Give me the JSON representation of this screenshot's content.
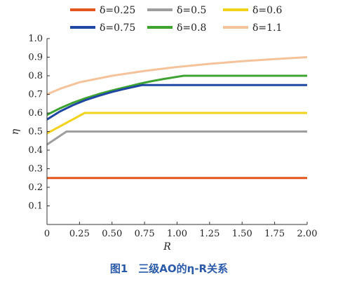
{
  "chart_data": {
    "type": "line",
    "caption": "图1　三级AO的η-R关系",
    "xlabel": "R",
    "ylabel": "η",
    "xlim": [
      0,
      2.0
    ],
    "ylim": [
      0,
      1.0
    ],
    "x_ticks": [
      "0",
      "0.25",
      "0.50",
      "0.75",
      "1.00",
      "1.25",
      "1.50",
      "1.75",
      "2.00"
    ],
    "y_ticks": [
      "0.1",
      "0.2",
      "0.3",
      "0.4",
      "0.5",
      "0.6",
      "0.7",
      "0.8",
      "0.9",
      "1.0"
    ],
    "legend_position": "top",
    "series": [
      {
        "name": "δ=0.25",
        "color": "#e4551f",
        "x": [
          0,
          2.0
        ],
        "y": [
          0.25,
          0.25
        ]
      },
      {
        "name": "δ=0.5",
        "color": "#9e9e9e",
        "x": [
          0,
          0.15,
          2.0
        ],
        "y": [
          0.43,
          0.5,
          0.5
        ]
      },
      {
        "name": "δ=0.6",
        "color": "#f2d31c",
        "x": [
          0,
          0.29,
          2.0
        ],
        "y": [
          0.49,
          0.6,
          0.6
        ]
      },
      {
        "name": "δ=0.75",
        "color": "#1f47a3",
        "x": [
          0,
          0.1,
          0.2,
          0.3,
          0.4,
          0.5,
          0.6,
          0.73,
          2.0
        ],
        "y": [
          0.565,
          0.608,
          0.642,
          0.67,
          0.693,
          0.713,
          0.73,
          0.75,
          0.75
        ]
      },
      {
        "name": "δ=0.8",
        "color": "#3ea331",
        "x": [
          0,
          0.1,
          0.2,
          0.3,
          0.4,
          0.5,
          0.6,
          0.7,
          0.8,
          0.9,
          1.05,
          2.0
        ],
        "y": [
          0.59,
          0.625,
          0.655,
          0.68,
          0.702,
          0.721,
          0.738,
          0.755,
          0.77,
          0.783,
          0.8,
          0.8
        ]
      },
      {
        "name": "δ=1.1",
        "color": "#f5c39b",
        "x": [
          0,
          0.1,
          0.25,
          0.5,
          0.75,
          1.0,
          1.25,
          1.5,
          1.75,
          2.0
        ],
        "y": [
          0.7,
          0.73,
          0.765,
          0.8,
          0.826,
          0.847,
          0.864,
          0.878,
          0.89,
          0.9
        ]
      }
    ]
  }
}
